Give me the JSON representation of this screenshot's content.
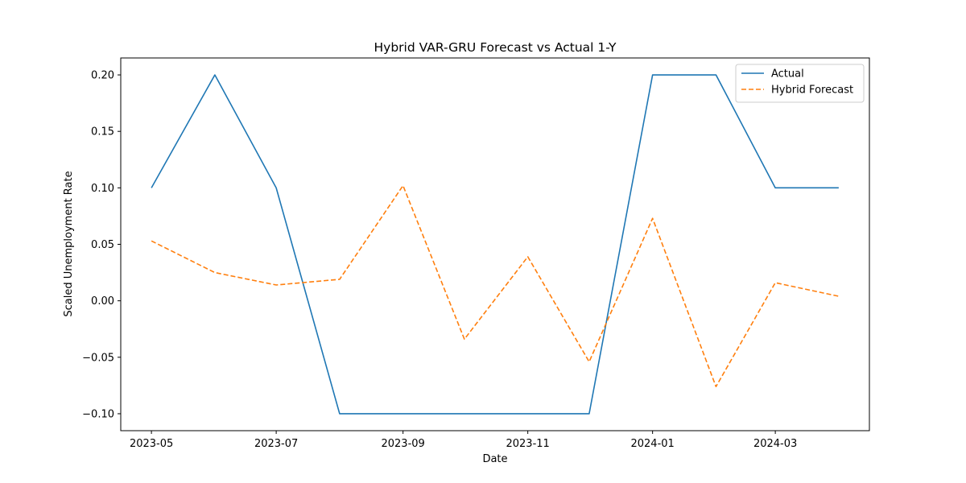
{
  "chart_data": {
    "type": "line",
    "title": "Hybrid VAR-GRU Forecast vs Actual 1-Y",
    "xlabel": "Date",
    "ylabel": "Scaled Unemployment Rate",
    "x": [
      "2023-05",
      "2023-06",
      "2023-07",
      "2023-08",
      "2023-09",
      "2023-10",
      "2023-11",
      "2023-12",
      "2024-01",
      "2024-02",
      "2024-03",
      "2024-04"
    ],
    "x_ticks": [
      "2023-05",
      "2023-07",
      "2023-09",
      "2023-11",
      "2024-01",
      "2024-03"
    ],
    "y_ticks": [
      "0.20",
      "0.15",
      "0.10",
      "0.05",
      "0.00",
      "−0.05",
      "−0.10"
    ],
    "ylim": [
      -0.115,
      0.215
    ],
    "xlim": [
      "2023-04-16",
      "2024-04-16"
    ],
    "grid": false,
    "legend_position": "top-right",
    "series": [
      {
        "name": "Actual",
        "color": "#1f77b4",
        "style": "solid",
        "values": [
          0.1,
          0.2,
          0.1,
          -0.1,
          -0.1,
          -0.1,
          -0.1,
          -0.1,
          0.2,
          0.2,
          0.1,
          0.1
        ]
      },
      {
        "name": "Hybrid Forecast",
        "color": "#ff7f0e",
        "style": "dashed",
        "values": [
          0.053,
          0.025,
          0.014,
          0.019,
          0.102,
          -0.034,
          0.039,
          -0.054,
          0.073,
          -0.076,
          0.016,
          0.004
        ]
      }
    ]
  }
}
